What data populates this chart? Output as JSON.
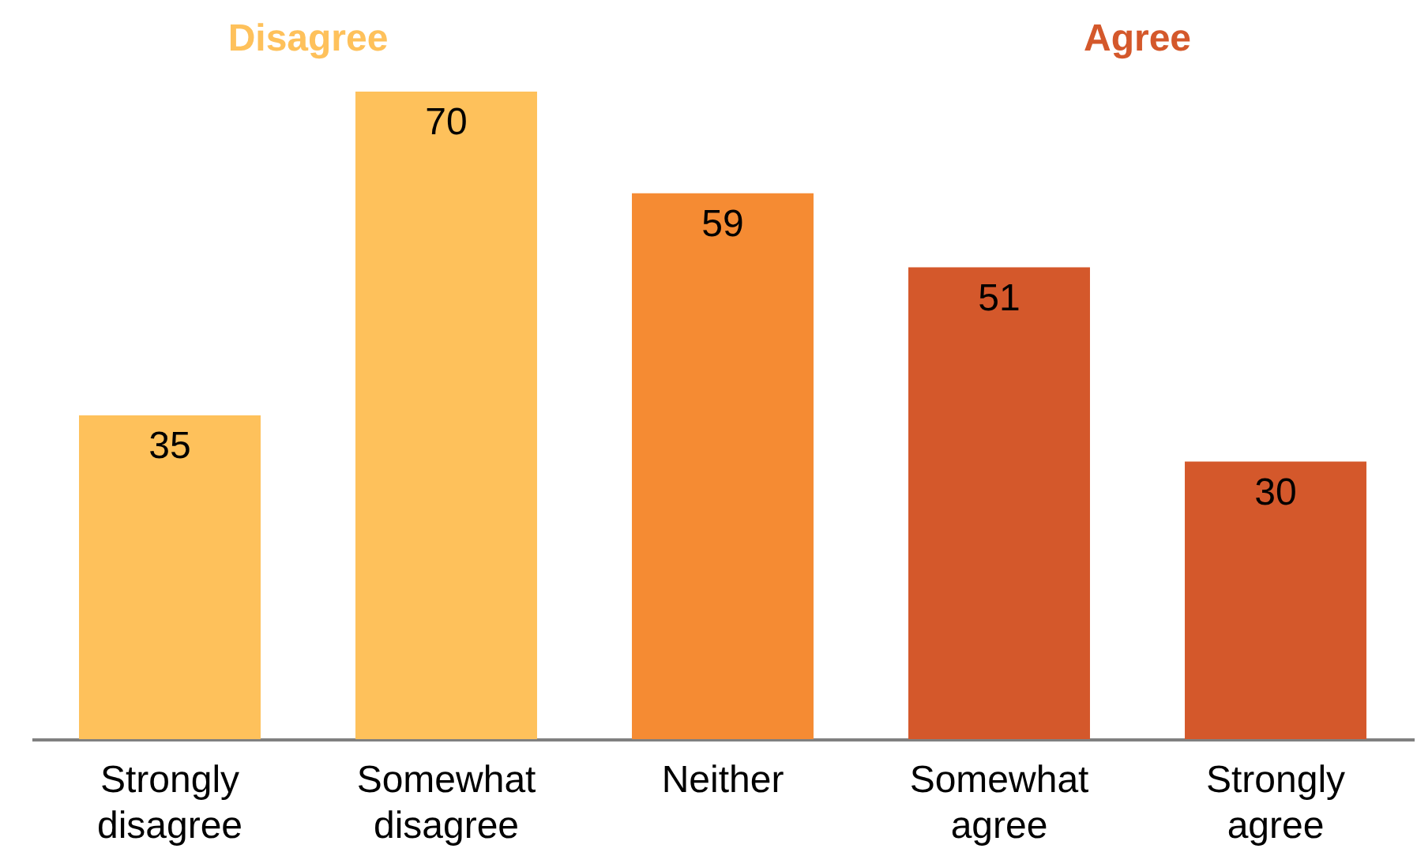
{
  "chart_data": {
    "type": "bar",
    "categories": [
      "Strongly disagree",
      "Somewhat disagree",
      "Neither",
      "Somewhat agree",
      "Strongly agree"
    ],
    "series": [
      {
        "name": "Disagree",
        "color": "#fec15b",
        "values": [
          35,
          70,
          null,
          null,
          null
        ]
      },
      {
        "color": "#f58b33",
        "values": [
          null,
          null,
          59,
          null,
          null
        ]
      },
      {
        "name": "Agree",
        "color": "#d4582b",
        "values": [
          null,
          null,
          null,
          51,
          30
        ]
      }
    ],
    "data_labels": true
  }
}
